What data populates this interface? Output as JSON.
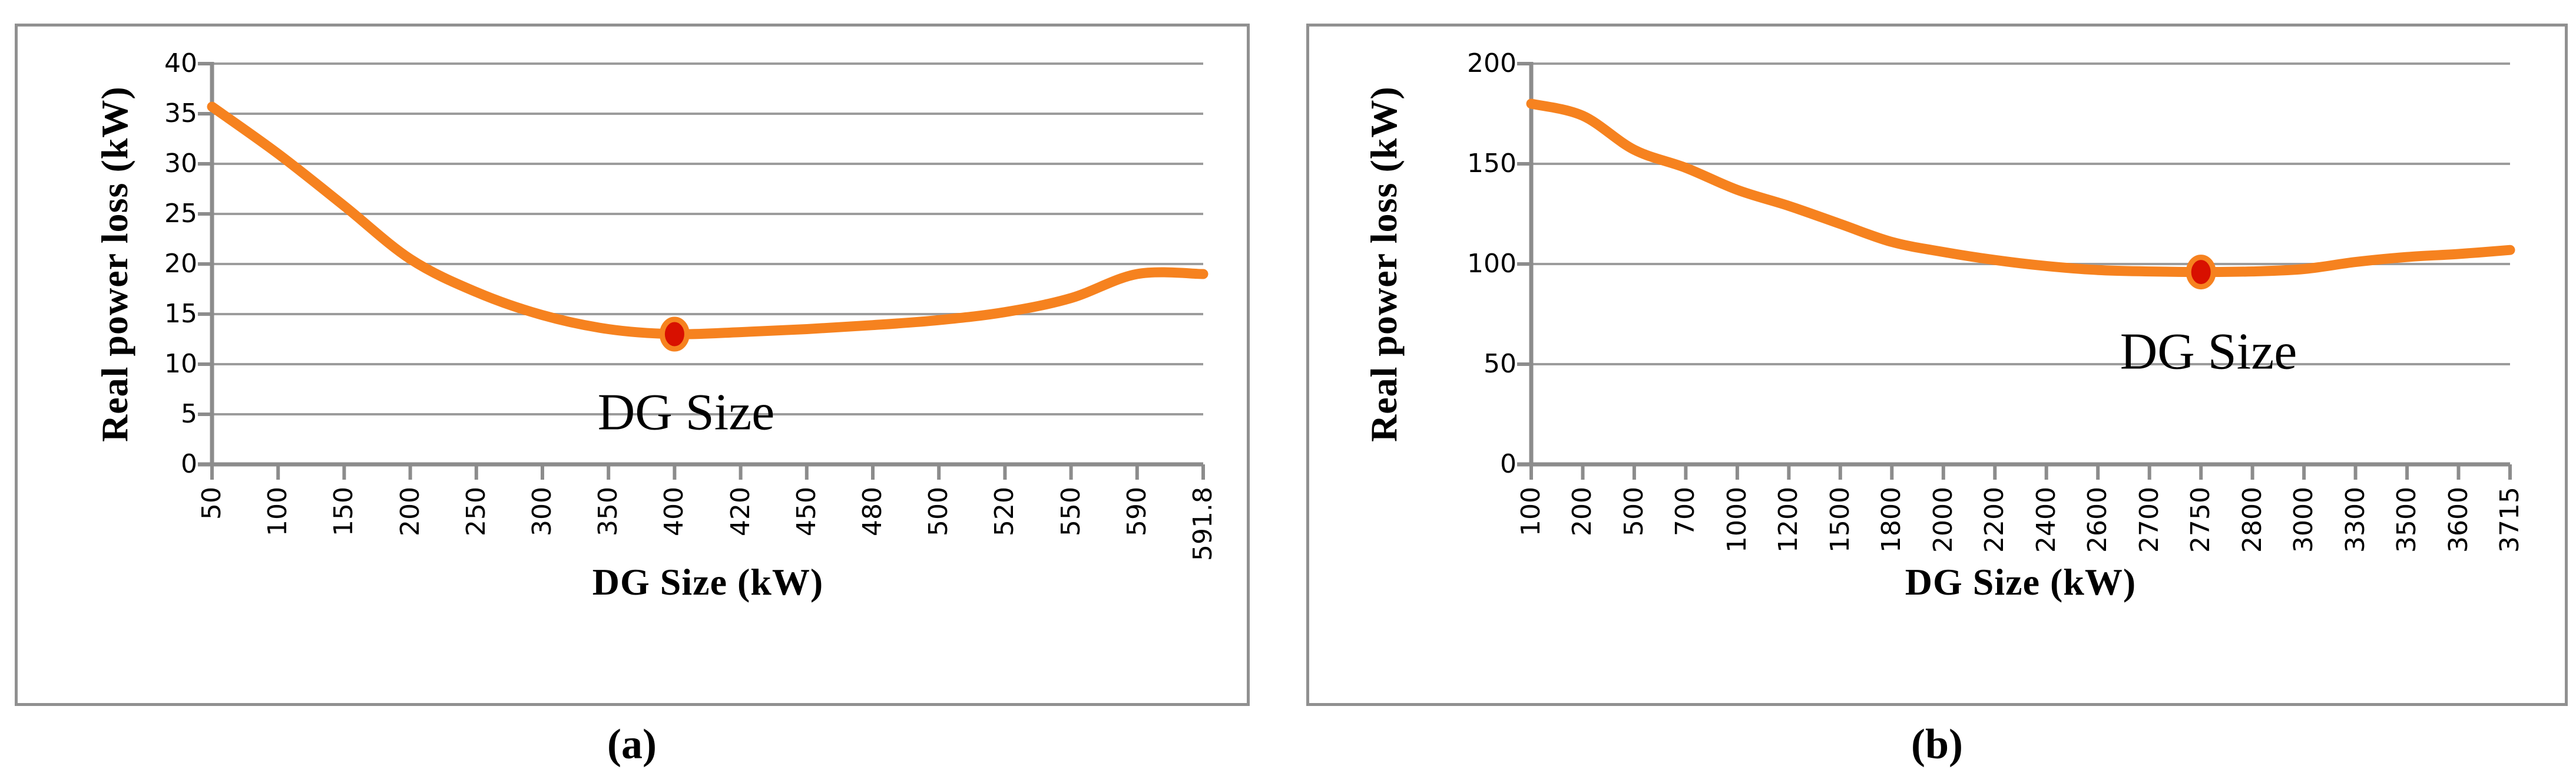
{
  "figure": {
    "description": "Two line charts of real power loss versus DG size",
    "panel_captions": [
      "(a)",
      "(b)"
    ]
  },
  "colors": {
    "curve_orange": "#F6821F",
    "marker_red": "#D81000",
    "gridline_gray": "#9C9C9C",
    "axis_gray": "#8C8C8C",
    "panel_border_gray": "#909090",
    "text_black": "#000000",
    "background": "#FFFFFF"
  },
  "chart_data": [
    {
      "type": "line",
      "title": "",
      "caption": "(a)",
      "xlabel": "DG Size (kW)",
      "ylabel": "Real power loss (kW)",
      "categories": [
        "50",
        "100",
        "150",
        "200",
        "250",
        "300",
        "350",
        "400",
        "420",
        "450",
        "480",
        "500",
        "520",
        "550",
        "590",
        "591.8"
      ],
      "values": [
        35.7,
        31,
        25.8,
        20.5,
        17.2,
        14.9,
        13.5,
        13,
        13.2,
        13.5,
        13.9,
        14.4,
        15.2,
        16.6,
        19,
        19
      ],
      "ylim": [
        0,
        40
      ],
      "yticks": [
        0,
        5,
        10,
        15,
        20,
        25,
        30,
        35,
        40
      ],
      "grid": true,
      "legend": "none",
      "line_color": "#F6821F",
      "marker": {
        "category": "400",
        "value": 13,
        "meaning": "optimal DG size point"
      },
      "annotation": {
        "text": "DG Size"
      }
    },
    {
      "type": "line",
      "title": "",
      "caption": "(b)",
      "xlabel": "DG Size (kW)",
      "ylabel": "Real power loss (kW)",
      "categories": [
        "100",
        "200",
        "500",
        "700",
        "1000",
        "1200",
        "1500",
        "1800",
        "2000",
        "2200",
        "2400",
        "2600",
        "2700",
        "2750",
        "2800",
        "3000",
        "3300",
        "3500",
        "3600",
        "3715"
      ],
      "values": [
        180,
        174,
        157,
        148,
        137,
        129,
        120,
        111,
        106,
        102,
        99,
        97,
        96.3,
        96,
        96.3,
        97.5,
        101,
        103.5,
        105,
        107
      ],
      "ylim": [
        0,
        200
      ],
      "yticks": [
        0,
        50,
        100,
        150,
        200
      ],
      "grid": true,
      "legend": "none",
      "line_color": "#F6821F",
      "marker": {
        "category": "2750",
        "value": 96,
        "meaning": "optimal DG size point"
      },
      "annotation": {
        "text": "DG Size"
      }
    }
  ]
}
